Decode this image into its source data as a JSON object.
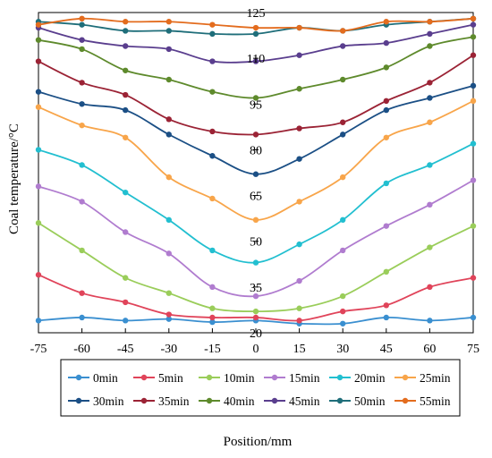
{
  "chart_data": {
    "type": "line",
    "xlabel": "Position/mm",
    "ylabel": "Coal temperature/°C",
    "x": [
      -75,
      -60,
      -45,
      -30,
      -15,
      0,
      15,
      30,
      45,
      60,
      75
    ],
    "xlim": [
      -75,
      75
    ],
    "ylim": [
      20,
      125
    ],
    "xticks": [
      "-75",
      "-60",
      "-45",
      "-30",
      "-15",
      "0",
      "15",
      "30",
      "45",
      "60",
      "75"
    ],
    "yticks": [
      "20",
      "35",
      "50",
      "65",
      "80",
      "95",
      "110",
      "125"
    ],
    "ytick_values": [
      20,
      35,
      50,
      65,
      80,
      95,
      110,
      125
    ],
    "grid": false,
    "legend_position": "bottom",
    "series": [
      {
        "name": "0min",
        "color": "#3a8fd0",
        "values": [
          24,
          25,
          24,
          24.5,
          23.5,
          24,
          23,
          23,
          25,
          24,
          25
        ]
      },
      {
        "name": "5min",
        "color": "#e0445a",
        "values": [
          39,
          33,
          30,
          26,
          25,
          25,
          24,
          27,
          29,
          35,
          38
        ]
      },
      {
        "name": "10min",
        "color": "#9acd5a",
        "values": [
          56,
          47,
          38,
          33,
          28,
          27,
          28,
          32,
          40,
          48,
          55
        ]
      },
      {
        "name": "15min",
        "color": "#b07ccf",
        "values": [
          68,
          63,
          53,
          46,
          35,
          32,
          37,
          47,
          55,
          62,
          70
        ]
      },
      {
        "name": "20min",
        "color": "#22bfd0",
        "values": [
          80,
          75,
          66,
          57,
          47,
          43,
          49,
          57,
          69,
          75,
          82
        ]
      },
      {
        "name": "25min",
        "color": "#f8a54a",
        "values": [
          94,
          88,
          84,
          71,
          64,
          57,
          63,
          71,
          84,
          89,
          96
        ]
      },
      {
        "name": "30min",
        "color": "#1b4f85",
        "values": [
          99,
          95,
          93,
          85,
          78,
          72,
          77,
          85,
          93,
          97,
          101
        ]
      },
      {
        "name": "35min",
        "color": "#9b2335",
        "values": [
          109,
          102,
          98,
          90,
          86,
          85,
          87,
          89,
          96,
          102,
          111
        ]
      },
      {
        "name": "40min",
        "color": "#5e8a2c",
        "values": [
          116,
          113,
          106,
          103,
          99,
          97,
          100,
          103,
          107,
          114,
          117
        ]
      },
      {
        "name": "45min",
        "color": "#5a3e8e",
        "values": [
          120,
          116,
          114,
          113,
          109,
          109,
          111,
          114,
          115,
          118,
          121
        ]
      },
      {
        "name": "50min",
        "color": "#1f6e7a",
        "values": [
          122,
          121,
          119,
          119,
          118,
          118,
          120,
          119,
          121,
          122,
          123
        ]
      },
      {
        "name": "55min",
        "color": "#e36c1e",
        "values": [
          121,
          123,
          122,
          122,
          121,
          120,
          120,
          119,
          122,
          122,
          123
        ]
      }
    ]
  }
}
